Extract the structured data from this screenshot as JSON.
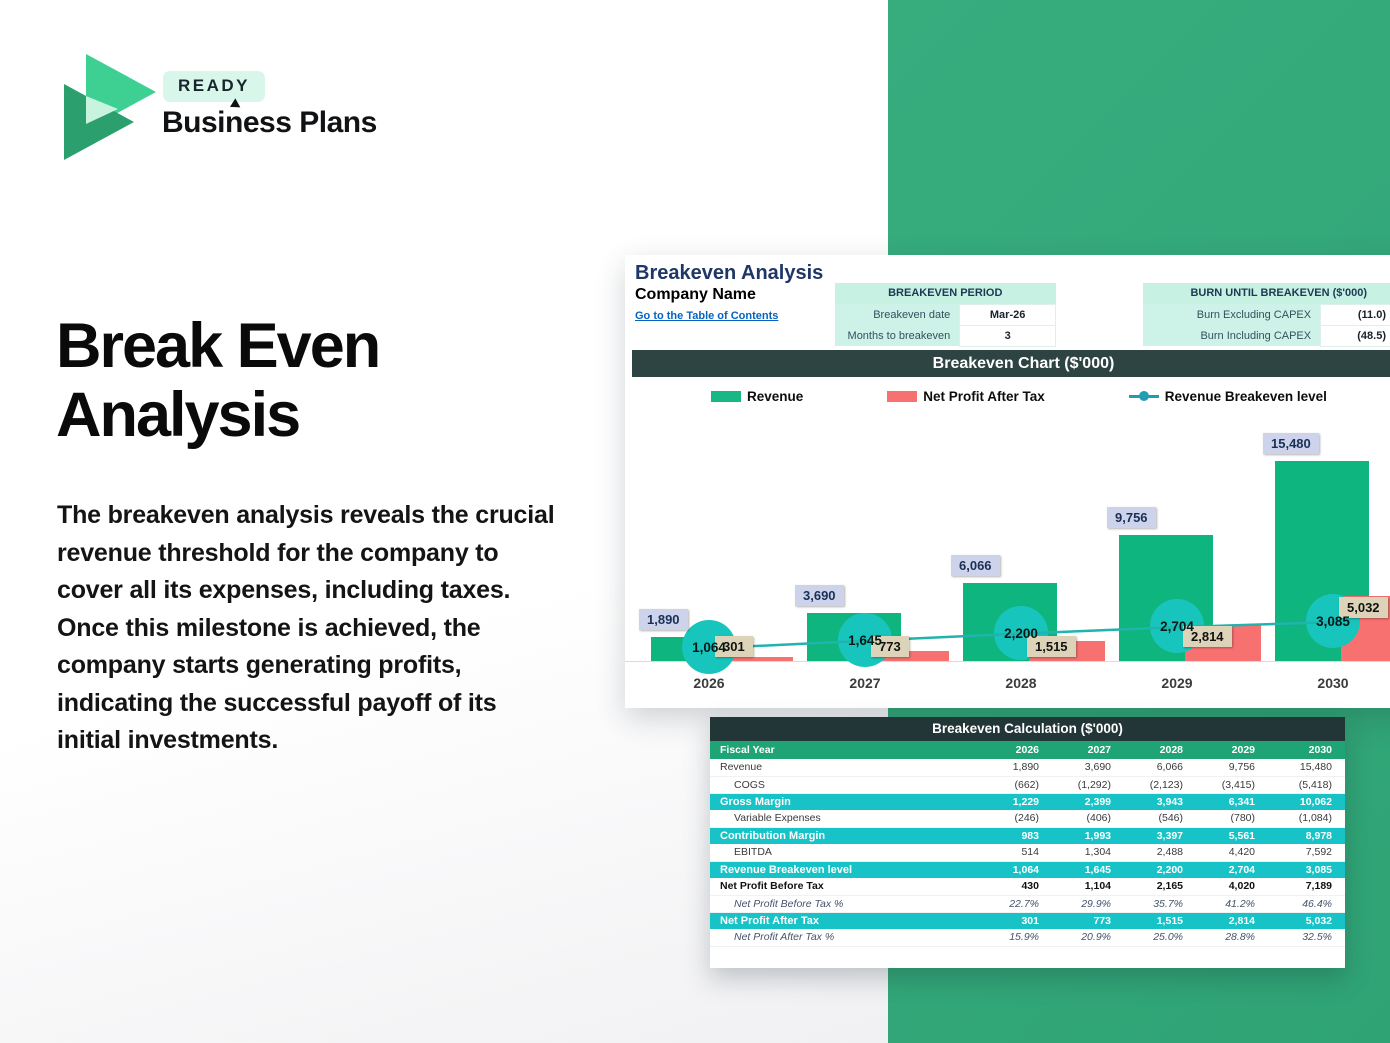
{
  "brand": {
    "badge": "READY",
    "name": "Business Plans"
  },
  "hero": {
    "title": "Break Even Analysis",
    "body": "The breakeven analysis reveals the crucial revenue threshold for the company to cover all its expenses, including taxes. Once this milestone is achieved, the company starts generating profits, indicating the successful payoff of its initial investments."
  },
  "sheet": {
    "title": "Breakeven Analysis",
    "company": "Company Name",
    "link": "Go to the Table of Contents",
    "period_table": {
      "header": "BREAKEVEN PERIOD",
      "rows": [
        [
          "Breakeven date",
          "Mar-26"
        ],
        [
          "Months to breakeven",
          "3"
        ]
      ]
    },
    "burn_table": {
      "header": "BURN UNTIL BREAKEVEN ($'000)",
      "rows": [
        [
          "Burn Excluding CAPEX",
          "(11.0)"
        ],
        [
          "Burn Including CAPEX",
          "(48.5)"
        ]
      ]
    }
  },
  "chart_data": {
    "type": "bar",
    "title": "Breakeven Chart ($'000)",
    "categories": [
      "2026",
      "2027",
      "2028",
      "2029",
      "2030"
    ],
    "series": [
      {
        "name": "Revenue",
        "type": "bar",
        "color": "#0fb57f",
        "values": [
          1890,
          3690,
          6066,
          9756,
          15480
        ]
      },
      {
        "name": "Net Profit After Tax",
        "type": "bar",
        "color": "#f87171",
        "values": [
          301,
          773,
          1515,
          2814,
          5032
        ]
      },
      {
        "name": "Revenue Breakeven level",
        "type": "line",
        "color": "#1f9db5",
        "values": [
          1064,
          1645,
          2200,
          2704,
          3085
        ]
      }
    ],
    "ylim": [
      0,
      15480
    ],
    "value_labels": true,
    "legend_position": "top",
    "grid": false
  },
  "calc_table": {
    "title": "Breakeven Calculation ($'000)",
    "header_label": "Fiscal Year",
    "years": [
      "2026",
      "2027",
      "2028",
      "2029",
      "2030"
    ],
    "rows": [
      {
        "label": "Revenue",
        "style": "plain",
        "values": [
          "1,890",
          "3,690",
          "6,066",
          "9,756",
          "15,480"
        ]
      },
      {
        "label": "COGS",
        "style": "indent",
        "values": [
          "(662)",
          "(1,292)",
          "(2,123)",
          "(3,415)",
          "(5,418)"
        ]
      },
      {
        "label": "Gross Margin",
        "style": "cyan",
        "values": [
          "1,229",
          "2,399",
          "3,943",
          "6,341",
          "10,062"
        ]
      },
      {
        "label": "Variable Expenses",
        "style": "indent",
        "values": [
          "(246)",
          "(406)",
          "(546)",
          "(780)",
          "(1,084)"
        ]
      },
      {
        "label": "Contribution Margin",
        "style": "cyan",
        "values": [
          "983",
          "1,993",
          "3,397",
          "5,561",
          "8,978"
        ]
      },
      {
        "label": "EBITDA",
        "style": "indent",
        "values": [
          "514",
          "1,304",
          "2,488",
          "4,420",
          "7,592"
        ]
      },
      {
        "label": "Revenue Breakeven level",
        "style": "cyan",
        "values": [
          "1,064",
          "1,645",
          "2,200",
          "2,704",
          "3,085"
        ]
      },
      {
        "label": "Net Profit Before Tax",
        "style": "bold",
        "values": [
          "430",
          "1,104",
          "2,165",
          "4,020",
          "7,189"
        ]
      },
      {
        "label": "Net Profit Before Tax %",
        "style": "pct",
        "values": [
          "22.7%",
          "29.9%",
          "35.7%",
          "41.2%",
          "46.4%"
        ]
      },
      {
        "label": "Net Profit After Tax",
        "style": "cyan",
        "values": [
          "301",
          "773",
          "1,515",
          "2,814",
          "5,032"
        ]
      },
      {
        "label": "Net Profit After Tax %",
        "style": "pct",
        "values": [
          "15.9%",
          "20.9%",
          "25.0%",
          "28.8%",
          "32.5%"
        ]
      }
    ]
  },
  "colors": {
    "green_panel": "#35ab7d",
    "revenue_bar": "#0fb57f",
    "net_profit_bar": "#f87171",
    "breakeven_marker": "#17c5bd",
    "cyan_row": "#17c3c6",
    "fiscal_row": "#1ea475",
    "dark_header": "#2d4442",
    "mint_cell": "#cdf3e8"
  }
}
